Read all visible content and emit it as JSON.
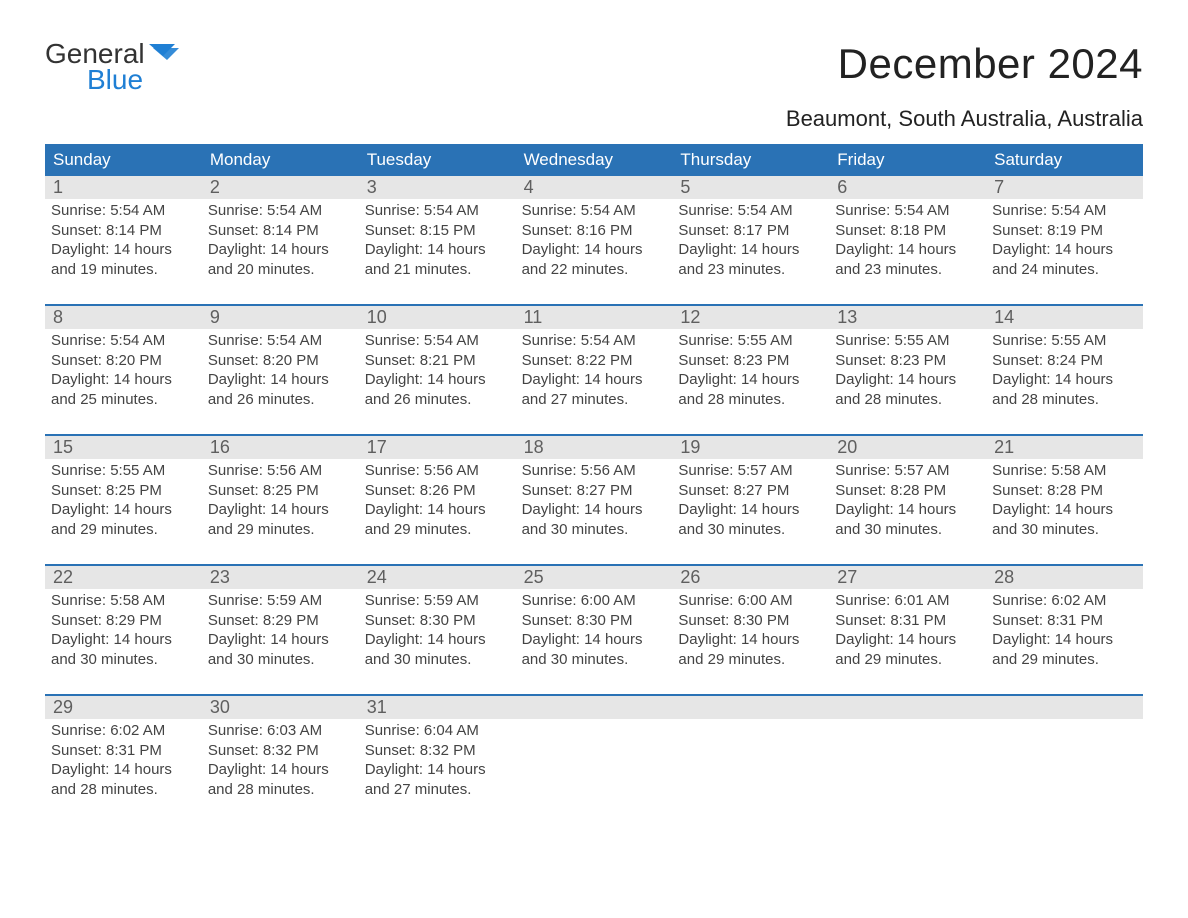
{
  "logo": {
    "line1": "General",
    "line2": "Blue"
  },
  "title": "December 2024",
  "subtitle": "Beaumont, South Australia, Australia",
  "colors": {
    "header_blue": "#2a72b5",
    "accent_blue": "#1f7fd4",
    "gray_bg": "#e6e6e6",
    "rule": "#2a72b5",
    "text_dark": "#2b2b2b",
    "text_mid": "#444444",
    "day_num": "#5f5f5f",
    "bg": "#ffffff"
  },
  "weekdays": [
    "Sunday",
    "Monday",
    "Tuesday",
    "Wednesday",
    "Thursday",
    "Friday",
    "Saturday"
  ],
  "weeks": [
    [
      {
        "n": "1",
        "sr": "5:54 AM",
        "ss": "8:14 PM",
        "dl": "14 hours and 19 minutes."
      },
      {
        "n": "2",
        "sr": "5:54 AM",
        "ss": "8:14 PM",
        "dl": "14 hours and 20 minutes."
      },
      {
        "n": "3",
        "sr": "5:54 AM",
        "ss": "8:15 PM",
        "dl": "14 hours and 21 minutes."
      },
      {
        "n": "4",
        "sr": "5:54 AM",
        "ss": "8:16 PM",
        "dl": "14 hours and 22 minutes."
      },
      {
        "n": "5",
        "sr": "5:54 AM",
        "ss": "8:17 PM",
        "dl": "14 hours and 23 minutes."
      },
      {
        "n": "6",
        "sr": "5:54 AM",
        "ss": "8:18 PM",
        "dl": "14 hours and 23 minutes."
      },
      {
        "n": "7",
        "sr": "5:54 AM",
        "ss": "8:19 PM",
        "dl": "14 hours and 24 minutes."
      }
    ],
    [
      {
        "n": "8",
        "sr": "5:54 AM",
        "ss": "8:20 PM",
        "dl": "14 hours and 25 minutes."
      },
      {
        "n": "9",
        "sr": "5:54 AM",
        "ss": "8:20 PM",
        "dl": "14 hours and 26 minutes."
      },
      {
        "n": "10",
        "sr": "5:54 AM",
        "ss": "8:21 PM",
        "dl": "14 hours and 26 minutes."
      },
      {
        "n": "11",
        "sr": "5:54 AM",
        "ss": "8:22 PM",
        "dl": "14 hours and 27 minutes."
      },
      {
        "n": "12",
        "sr": "5:55 AM",
        "ss": "8:23 PM",
        "dl": "14 hours and 28 minutes."
      },
      {
        "n": "13",
        "sr": "5:55 AM",
        "ss": "8:23 PM",
        "dl": "14 hours and 28 minutes."
      },
      {
        "n": "14",
        "sr": "5:55 AM",
        "ss": "8:24 PM",
        "dl": "14 hours and 28 minutes."
      }
    ],
    [
      {
        "n": "15",
        "sr": "5:55 AM",
        "ss": "8:25 PM",
        "dl": "14 hours and 29 minutes."
      },
      {
        "n": "16",
        "sr": "5:56 AM",
        "ss": "8:25 PM",
        "dl": "14 hours and 29 minutes."
      },
      {
        "n": "17",
        "sr": "5:56 AM",
        "ss": "8:26 PM",
        "dl": "14 hours and 29 minutes."
      },
      {
        "n": "18",
        "sr": "5:56 AM",
        "ss": "8:27 PM",
        "dl": "14 hours and 30 minutes."
      },
      {
        "n": "19",
        "sr": "5:57 AM",
        "ss": "8:27 PM",
        "dl": "14 hours and 30 minutes."
      },
      {
        "n": "20",
        "sr": "5:57 AM",
        "ss": "8:28 PM",
        "dl": "14 hours and 30 minutes."
      },
      {
        "n": "21",
        "sr": "5:58 AM",
        "ss": "8:28 PM",
        "dl": "14 hours and 30 minutes."
      }
    ],
    [
      {
        "n": "22",
        "sr": "5:58 AM",
        "ss": "8:29 PM",
        "dl": "14 hours and 30 minutes."
      },
      {
        "n": "23",
        "sr": "5:59 AM",
        "ss": "8:29 PM",
        "dl": "14 hours and 30 minutes."
      },
      {
        "n": "24",
        "sr": "5:59 AM",
        "ss": "8:30 PM",
        "dl": "14 hours and 30 minutes."
      },
      {
        "n": "25",
        "sr": "6:00 AM",
        "ss": "8:30 PM",
        "dl": "14 hours and 30 minutes."
      },
      {
        "n": "26",
        "sr": "6:00 AM",
        "ss": "8:30 PM",
        "dl": "14 hours and 29 minutes."
      },
      {
        "n": "27",
        "sr": "6:01 AM",
        "ss": "8:31 PM",
        "dl": "14 hours and 29 minutes."
      },
      {
        "n": "28",
        "sr": "6:02 AM",
        "ss": "8:31 PM",
        "dl": "14 hours and 29 minutes."
      }
    ],
    [
      {
        "n": "29",
        "sr": "6:02 AM",
        "ss": "8:31 PM",
        "dl": "14 hours and 28 minutes."
      },
      {
        "n": "30",
        "sr": "6:03 AM",
        "ss": "8:32 PM",
        "dl": "14 hours and 28 minutes."
      },
      {
        "n": "31",
        "sr": "6:04 AM",
        "ss": "8:32 PM",
        "dl": "14 hours and 27 minutes."
      },
      null,
      null,
      null,
      null
    ]
  ],
  "labels": {
    "sunrise": "Sunrise: ",
    "sunset": "Sunset: ",
    "daylight": "Daylight: "
  }
}
